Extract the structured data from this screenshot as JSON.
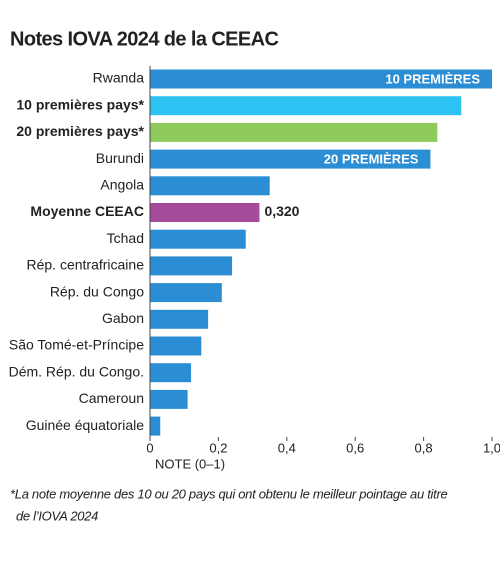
{
  "chart_data": {
    "type": "bar",
    "orientation": "horizontal",
    "title": "Notes IOVA 2024 de la CEEAC",
    "categories": [
      "Rwanda",
      "10 premières pays*",
      "20 premières pays*",
      "Burundi",
      "Angola",
      "Moyenne CEEAC",
      "Tchad",
      "Rép. centrafricaine",
      "Rép. du Congo",
      "Gabon",
      "São Tomé-et-Príncipe",
      "Dém. Rép. du Congo.",
      "Cameroun",
      "Guinée équatoriale"
    ],
    "values": [
      1.0,
      0.91,
      0.84,
      0.82,
      0.35,
      0.32,
      0.28,
      0.24,
      0.21,
      0.17,
      0.15,
      0.12,
      0.11,
      0.03
    ],
    "value_labels": [
      null,
      null,
      null,
      null,
      null,
      "0,320",
      null,
      null,
      null,
      null,
      null,
      null,
      null,
      null
    ],
    "colors": [
      "#2b8ed5",
      "#2cc3f3",
      "#8ec95b",
      "#2b8ed5",
      "#2b8ed5",
      "#a64a9c",
      "#2b8ed5",
      "#2b8ed5",
      "#2b8ed5",
      "#2b8ed5",
      "#2b8ed5",
      "#2b8ed5",
      "#2b8ed5",
      "#2b8ed5"
    ],
    "annotations": [
      {
        "category": "Rwanda",
        "text": "10 PREMIÈRES"
      },
      {
        "category": "Burundi",
        "text": "20 PREMIÈRES"
      }
    ],
    "xlim": [
      0,
      1.0
    ],
    "xticks": [
      0,
      {
        "value": 0.2,
        "label": "0,2"
      },
      {
        "value": 0.4,
        "label": "0,4"
      },
      {
        "value": 0.6,
        "label": "0,6"
      },
      {
        "value": 0.8,
        "label": "0,8"
      },
      {
        "value": 1.0,
        "label": "1,0"
      }
    ],
    "xlabel": "NOTE (0–1)",
    "footnote": [
      "*La note moyenne des 10 ou 20 pays qui ont obtenu le meilleur pointage au titre",
      "de l’IOVA 2024"
    ]
  }
}
